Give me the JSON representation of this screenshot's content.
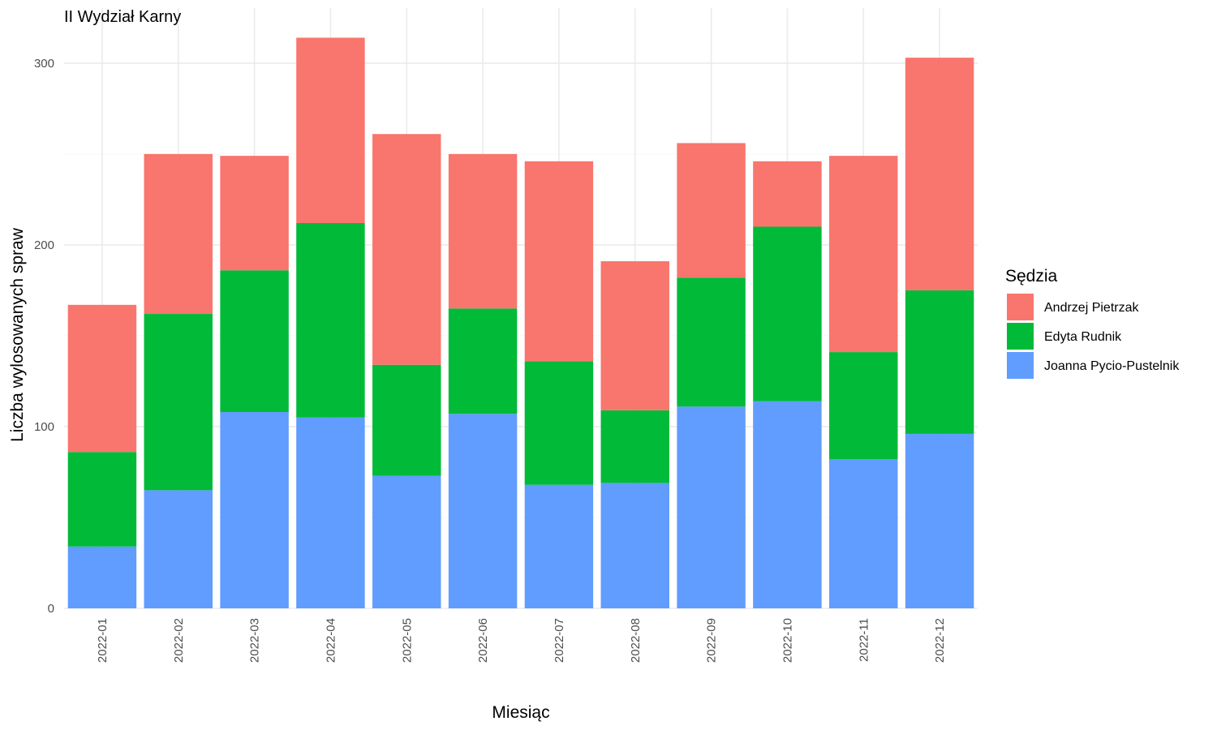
{
  "chart_data": {
    "type": "bar",
    "stacked": true,
    "title": "II Wydział Karny",
    "xlabel": "Miesiąc",
    "ylabel": "Liczba wylosowanych spraw",
    "legend_title": "Sędzia",
    "legend_position": "right",
    "grid": true,
    "ylim": [
      0,
      320
    ],
    "yticks": [
      0,
      100,
      200,
      300
    ],
    "categories": [
      "2022-01",
      "2022-02",
      "2022-03",
      "2022-04",
      "2022-05",
      "2022-06",
      "2022-07",
      "2022-08",
      "2022-09",
      "2022-10",
      "2022-11",
      "2022-12"
    ],
    "series": [
      {
        "name": "Joanna Pycio-Pustelnik",
        "color": "#619CFF",
        "values": [
          34,
          65,
          108,
          105,
          73,
          107,
          68,
          69,
          111,
          114,
          82,
          96
        ]
      },
      {
        "name": "Edyta Rudnik",
        "color": "#00BA38",
        "values": [
          52,
          97,
          78,
          107,
          61,
          58,
          68,
          40,
          71,
          96,
          59,
          79
        ]
      },
      {
        "name": "Andrzej Pietrzak",
        "color": "#F8766D",
        "values": [
          81,
          88,
          63,
          102,
          127,
          85,
          110,
          82,
          74,
          36,
          108,
          128
        ]
      }
    ],
    "legend_order": [
      "Andrzej Pietrzak",
      "Edyta Rudnik",
      "Joanna Pycio-Pustelnik"
    ]
  }
}
